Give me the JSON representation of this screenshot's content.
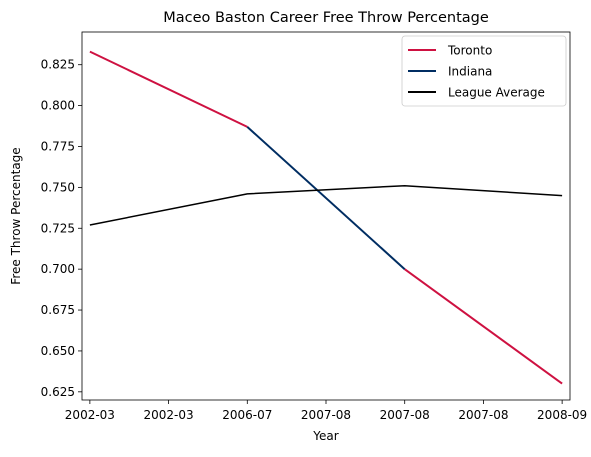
{
  "chart_data": {
    "type": "line",
    "title": "Maceo Baston Career Free Throw Percentage",
    "xlabel": "Year",
    "ylabel": "Free Throw Percentage",
    "x_tick_labels": [
      "2002-03",
      "2002-03",
      "2006-07",
      "2007-08",
      "2007-08",
      "2007-08",
      "2008-09"
    ],
    "xlim": [
      -0.1,
      6.1
    ],
    "ylim": [
      0.62,
      0.845
    ],
    "y_ticks": [
      0.625,
      0.65,
      0.675,
      0.7,
      0.725,
      0.75,
      0.775,
      0.8,
      0.825
    ],
    "grid": false,
    "legend_position": "top-right",
    "series": [
      {
        "name": "Toronto",
        "color": "#ce1141",
        "line_width": 2,
        "segments": [
          {
            "x": [
              0,
              2
            ],
            "y": [
              0.833,
              0.787
            ]
          },
          {
            "x": [
              4,
              6
            ],
            "y": [
              0.7,
              0.63
            ]
          }
        ]
      },
      {
        "name": "Indiana",
        "color": "#002d62",
        "line_width": 2,
        "segments": [
          {
            "x": [
              2,
              4
            ],
            "y": [
              0.787,
              0.7
            ]
          }
        ]
      },
      {
        "name": "League Average",
        "color": "#000000",
        "line_width": 1.5,
        "segments": [
          {
            "x": [
              0,
              2,
              4,
              6
            ],
            "y": [
              0.727,
              0.746,
              0.751,
              0.745
            ]
          }
        ]
      }
    ]
  }
}
